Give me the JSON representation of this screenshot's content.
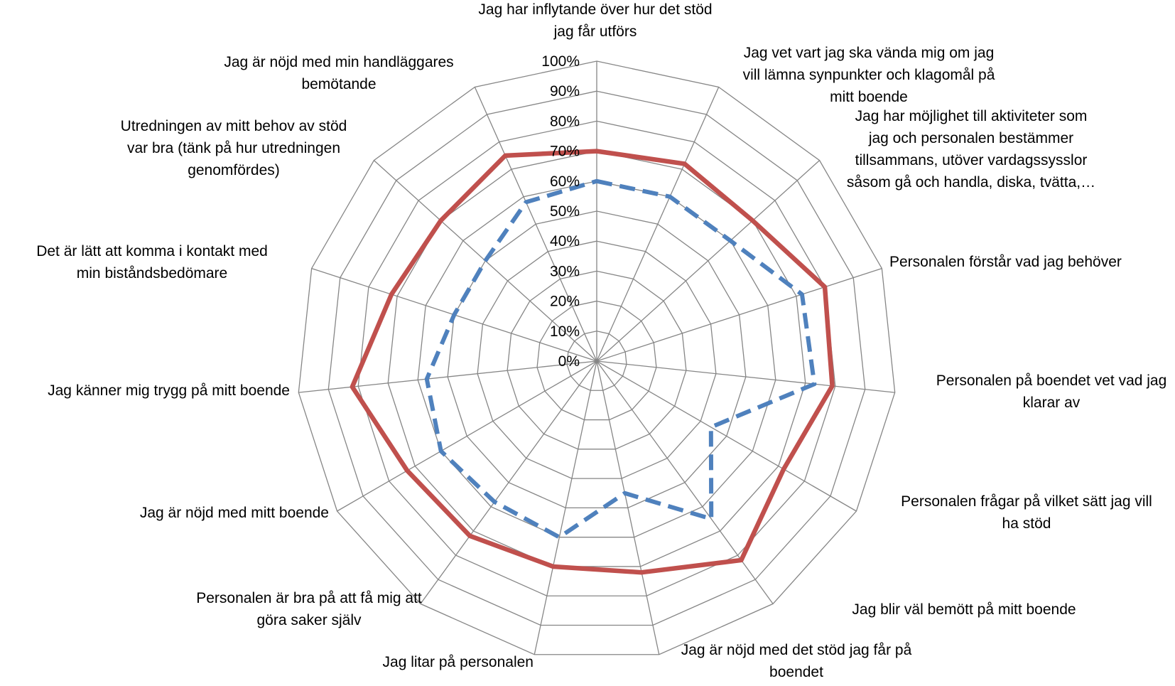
{
  "chart_data": {
    "type": "radar",
    "title": "",
    "axis_tick_labels": [
      "0%",
      "10%",
      "20%",
      "30%",
      "40%",
      "50%",
      "60%",
      "70%",
      "80%",
      "90%",
      "100%"
    ],
    "range": [
      0,
      100
    ],
    "grid": true,
    "legend": "none",
    "categories": [
      "Jag har inflytande över hur det stöd jag får utförs",
      "Jag vet vart jag ska vända mig om jag vill lämna synpunkter och klagomål på mitt boende",
      "Jag har möjlighet till aktiviteter som jag och personalen bestämmer tillsammans, utöver vardagssysslor såsom gå och handla, diska, tvätta,…",
      "Personalen förstår vad jag behöver",
      "Personalen på boendet vet vad jag klarar av",
      "Personalen frågar på vilket sätt jag vill ha stöd",
      "Jag blir väl bemött på mitt boende",
      "Jag är nöjd med det stöd jag får på boendet",
      "Jag litar på personalen",
      "Personalen är bra på att få mig att göra saker själv",
      "Jag är nöjd med mitt boende",
      "Jag känner mig trygg på mitt boende",
      "Det är lätt att komma i kontakt med min biståndsbedömare",
      "Utredningen av mitt behov av stöd var bra (tänk på hur utredningen genomfördes)",
      "Jag är nöjd med min handläggares bemötande"
    ],
    "category_lines": [
      [
        "Jag har inflytande över hur det stöd",
        "jag får utförs"
      ],
      [
        "Jag vet vart jag ska vända mig om jag",
        "vill lämna synpunkter och klagomål på",
        "mitt boende"
      ],
      [
        "Jag har möjlighet till aktiviteter som",
        "jag och personalen bestämmer",
        "tillsammans, utöver vardagssysslor",
        "såsom gå och handla, diska, tvätta,…"
      ],
      [
        "Personalen förstår vad jag behöver"
      ],
      [
        "Personalen på boendet vet vad jag",
        "klarar av"
      ],
      [
        "Personalen frågar på vilket sätt jag vill",
        "ha stöd"
      ],
      [
        "Jag blir väl bemött på mitt boende"
      ],
      [
        "Jag är nöjd med det stöd jag får på",
        "boendet"
      ],
      [
        "Jag litar på personalen"
      ],
      [
        "Personalen är bra på att få mig att",
        "göra saker själv"
      ],
      [
        "Jag är nöjd med mitt boende"
      ],
      [
        "Jag känner mig trygg på mitt boende"
      ],
      [
        "Det är lätt att komma i kontakt med",
        "min biståndsbedömare"
      ],
      [
        "Utredningen av mitt behov av stöd",
        "var bra (tänk på hur utredningen",
        "genomfördes)"
      ],
      [
        "Jag är nöjd med min handläggares",
        "bemötande"
      ]
    ],
    "series": [
      {
        "values": [
          70,
          72,
          70,
          80,
          79,
          72,
          82,
          72,
          70,
          72,
          73,
          82,
          72,
          70,
          75
        ],
        "color": "#C0504D",
        "style": "solid"
      },
      {
        "values": [
          60,
          60,
          60,
          72,
          73,
          44,
          65,
          45,
          60,
          58,
          60,
          57,
          50,
          50,
          58
        ],
        "color": "#4F81BD",
        "style": "dashed"
      }
    ],
    "grid_color": "#868686"
  }
}
